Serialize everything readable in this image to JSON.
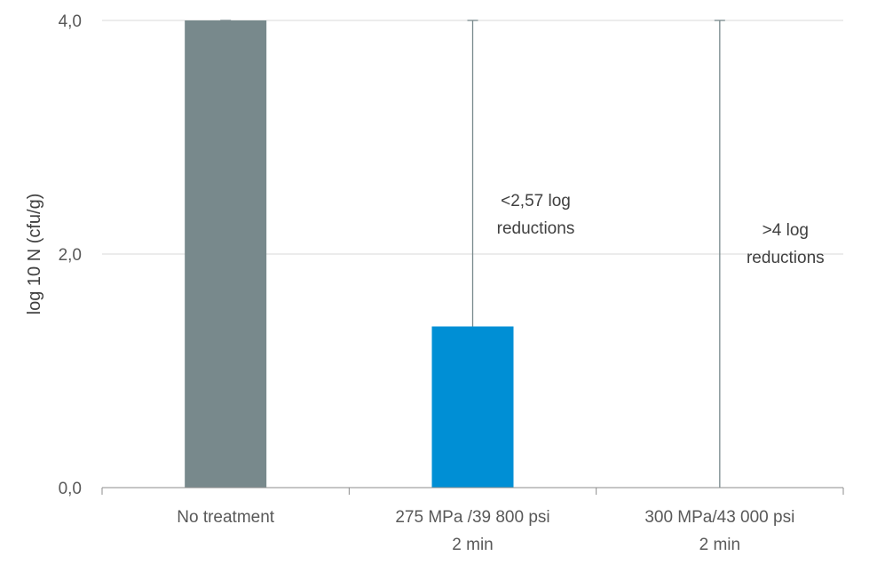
{
  "chart_data": {
    "type": "bar",
    "title": "",
    "xlabel": "",
    "ylabel": "log 10 N (cfu/g)",
    "ylim": [
      0,
      4
    ],
    "yticks": [
      "0,0",
      "2,0",
      "4,0"
    ],
    "ytick_values": [
      0,
      2,
      4
    ],
    "grid": true,
    "categories": [
      [
        "No treatment"
      ],
      [
        "275 MPa /39 800 psi",
        "2 min"
      ],
      [
        "300 MPa/43 000  psi",
        "2 min"
      ]
    ],
    "values": [
      4.0,
      1.38,
      0
    ],
    "error_high": [
      4.0,
      4.0,
      4.0
    ],
    "colors": [
      "#78898c",
      "#008fd5",
      "#78898c"
    ],
    "annotations": [
      {
        "category_index": 1,
        "lines": [
          "<2,57 log",
          "reductions"
        ]
      },
      {
        "category_index": 2,
        "lines": [
          ">4 log",
          "reductions"
        ]
      }
    ]
  }
}
